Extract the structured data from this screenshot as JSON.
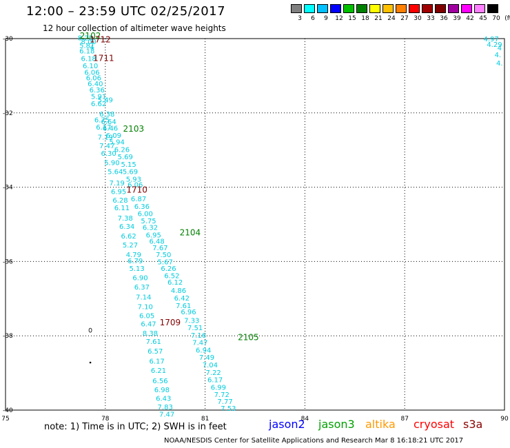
{
  "title": "12:00 – 23:59 UTC 02/25/2017",
  "subtitle": "12 hour collection of altimeter wave heights",
  "legend": {
    "unit": "(ft)",
    "colors": [
      "#808080",
      "#00ffff",
      "#00c0ff",
      "#0000ff",
      "#00c000",
      "#008000",
      "#ffff00",
      "#ffc000",
      "#ff8000",
      "#ff0000",
      "#a00000",
      "#800000",
      "#a000a0",
      "#ff00ff",
      "#ff80ff",
      "#000000"
    ],
    "ticks": [
      "3",
      "6",
      "9",
      "12",
      "15",
      "18",
      "21",
      "24",
      "27",
      "30",
      "33",
      "36",
      "39",
      "42",
      "45",
      "70"
    ]
  },
  "map": {
    "lon_labels": [
      "75",
      "78",
      "81",
      "84",
      "87",
      "90"
    ],
    "lat_labels": [
      "-30",
      "-32",
      "-34",
      "-36",
      "-38",
      "-40"
    ]
  },
  "chart_data": {
    "type": "scatter",
    "x_range": [
      75,
      90
    ],
    "y_range": [
      -40,
      -30
    ],
    "x_ticks": [
      75,
      78,
      81,
      84,
      87,
      90
    ],
    "y_ticks": [
      -30,
      -32,
      -34,
      -36,
      -38,
      -40
    ],
    "grid": true,
    "series": [
      {
        "name": "jason3",
        "color": "#00ccdd",
        "points": [
          {
            "lon": 77.4,
            "lat": -30.05,
            "v": "8.25"
          },
          {
            "lon": 77.5,
            "lat": -30.15,
            "v": "8.00"
          },
          {
            "lon": 77.45,
            "lat": -30.25,
            "v": "5.81"
          },
          {
            "lon": 77.6,
            "lat": -30.3,
            "v": "4"
          },
          {
            "lon": 77.45,
            "lat": -30.4,
            "v": "6.18"
          },
          {
            "lon": 77.5,
            "lat": -30.6,
            "v": "6.18"
          },
          {
            "lon": 77.55,
            "lat": -30.8,
            "v": "6.10"
          },
          {
            "lon": 77.6,
            "lat": -30.97,
            "v": "6.06"
          },
          {
            "lon": 77.65,
            "lat": -31.12,
            "v": "6.06"
          },
          {
            "lon": 77.7,
            "lat": -31.28,
            "v": "6.40"
          },
          {
            "lon": 77.75,
            "lat": -31.45,
            "v": "6.36"
          },
          {
            "lon": 77.8,
            "lat": -31.62,
            "v": "5.91"
          },
          {
            "lon": 78.0,
            "lat": -31.72,
            "v": "5.49"
          },
          {
            "lon": 77.8,
            "lat": -31.82,
            "v": "6.62"
          },
          {
            "lon": 78.05,
            "lat": -32.1,
            "v": "6.38"
          },
          {
            "lon": 77.9,
            "lat": -32.25,
            "v": "6.75"
          },
          {
            "lon": 78.1,
            "lat": -32.3,
            "v": "6.64"
          },
          {
            "lon": 77.95,
            "lat": -32.45,
            "v": "6.17"
          },
          {
            "lon": 78.15,
            "lat": -32.48,
            "v": "6.46"
          },
          {
            "lon": 78.25,
            "lat": -32.67,
            "v": "6.09"
          },
          {
            "lon": 78.0,
            "lat": -32.72,
            "v": "7.19"
          },
          {
            "lon": 78.35,
            "lat": -32.85,
            "v": "5.94"
          },
          {
            "lon": 78.05,
            "lat": -32.95,
            "v": "7.47"
          },
          {
            "lon": 78.5,
            "lat": -33.05,
            "v": "6.26"
          },
          {
            "lon": 78.1,
            "lat": -33.15,
            "v": "6.30"
          },
          {
            "lon": 78.6,
            "lat": -33.25,
            "v": "5.69"
          },
          {
            "lon": 78.2,
            "lat": -33.4,
            "v": "5.90"
          },
          {
            "lon": 78.7,
            "lat": -33.45,
            "v": "5.15"
          },
          {
            "lon": 78.3,
            "lat": -33.65,
            "v": "5.64"
          },
          {
            "lon": 78.75,
            "lat": -33.65,
            "v": "5.69"
          },
          {
            "lon": 78.85,
            "lat": -33.85,
            "v": "5.93"
          },
          {
            "lon": 78.35,
            "lat": -33.95,
            "v": "7.19"
          },
          {
            "lon": 78.9,
            "lat": -34.0,
            "v": "6.06"
          },
          {
            "lon": 78.4,
            "lat": -34.18,
            "v": "6.95"
          },
          {
            "lon": 79.0,
            "lat": -34.38,
            "v": "6.87"
          },
          {
            "lon": 78.45,
            "lat": -34.42,
            "v": "6.28"
          },
          {
            "lon": 79.1,
            "lat": -34.58,
            "v": "6.36"
          },
          {
            "lon": 78.5,
            "lat": -34.62,
            "v": "6.11"
          },
          {
            "lon": 79.2,
            "lat": -34.78,
            "v": "6.00"
          },
          {
            "lon": 78.6,
            "lat": -34.9,
            "v": "7.38"
          },
          {
            "lon": 79.3,
            "lat": -34.97,
            "v": "5.75"
          },
          {
            "lon": 78.65,
            "lat": -35.12,
            "v": "6.34"
          },
          {
            "lon": 79.35,
            "lat": -35.15,
            "v": "6.32"
          },
          {
            "lon": 79.45,
            "lat": -35.35,
            "v": "6.95"
          },
          {
            "lon": 78.7,
            "lat": -35.38,
            "v": "6.62"
          },
          {
            "lon": 79.55,
            "lat": -35.52,
            "v": "6.48"
          },
          {
            "lon": 78.75,
            "lat": -35.62,
            "v": "5.27"
          },
          {
            "lon": 79.65,
            "lat": -35.7,
            "v": "7.67"
          },
          {
            "lon": 79.75,
            "lat": -35.88,
            "v": "7.50"
          },
          {
            "lon": 78.85,
            "lat": -35.88,
            "v": "4.79"
          },
          {
            "lon": 78.9,
            "lat": -36.05,
            "v": "6.79"
          },
          {
            "lon": 79.8,
            "lat": -36.08,
            "v": "5.67"
          },
          {
            "lon": 79.9,
            "lat": -36.25,
            "v": "6.26"
          },
          {
            "lon": 78.95,
            "lat": -36.25,
            "v": "5.13"
          },
          {
            "lon": 80.0,
            "lat": -36.45,
            "v": "6.52"
          },
          {
            "lon": 79.05,
            "lat": -36.5,
            "v": "6.90"
          },
          {
            "lon": 80.1,
            "lat": -36.62,
            "v": "6.12"
          },
          {
            "lon": 79.1,
            "lat": -36.75,
            "v": "6.37"
          },
          {
            "lon": 80.2,
            "lat": -36.85,
            "v": "4.86"
          },
          {
            "lon": 79.15,
            "lat": -37.02,
            "v": "7.14"
          },
          {
            "lon": 80.3,
            "lat": -37.05,
            "v": "6.42"
          },
          {
            "lon": 80.35,
            "lat": -37.25,
            "v": "7.61"
          },
          {
            "lon": 79.2,
            "lat": -37.28,
            "v": "7.10"
          },
          {
            "lon": 80.5,
            "lat": -37.42,
            "v": "6.96"
          },
          {
            "lon": 79.25,
            "lat": -37.52,
            "v": "6.05"
          },
          {
            "lon": 80.6,
            "lat": -37.65,
            "v": "7.33"
          },
          {
            "lon": 79.3,
            "lat": -37.75,
            "v": "6.47"
          },
          {
            "lon": 80.7,
            "lat": -37.85,
            "v": "7.51"
          },
          {
            "lon": 79.35,
            "lat": -38.0,
            "v": "8.38"
          },
          {
            "lon": 80.8,
            "lat": -38.05,
            "v": "7.16"
          },
          {
            "lon": 79.45,
            "lat": -38.22,
            "v": "7.61"
          },
          {
            "lon": 80.85,
            "lat": -38.25,
            "v": "7.47"
          },
          {
            "lon": 80.95,
            "lat": -38.45,
            "v": "6.94"
          },
          {
            "lon": 79.5,
            "lat": -38.48,
            "v": "6.57"
          },
          {
            "lon": 81.05,
            "lat": -38.65,
            "v": "7.49"
          },
          {
            "lon": 79.55,
            "lat": -38.75,
            "v": "6.17"
          },
          {
            "lon": 81.15,
            "lat": -38.85,
            "v": "7.04"
          },
          {
            "lon": 79.6,
            "lat": -39.0,
            "v": "6.21"
          },
          {
            "lon": 81.25,
            "lat": -39.05,
            "v": "7.22"
          },
          {
            "lon": 81.3,
            "lat": -39.25,
            "v": "6.17"
          },
          {
            "lon": 79.65,
            "lat": -39.28,
            "v": "6.56"
          },
          {
            "lon": 81.4,
            "lat": -39.45,
            "v": "6.99"
          },
          {
            "lon": 79.7,
            "lat": -39.52,
            "v": "6.98"
          },
          {
            "lon": 81.5,
            "lat": -39.65,
            "v": "7.72"
          },
          {
            "lon": 79.75,
            "lat": -39.75,
            "v": "6.43"
          },
          {
            "lon": 81.6,
            "lat": -39.83,
            "v": "7.77"
          },
          {
            "lon": 79.8,
            "lat": -39.98,
            "v": "7.83"
          },
          {
            "lon": 81.7,
            "lat": -40.02,
            "v": "7.53"
          },
          {
            "lon": 79.85,
            "lat": -40.18,
            "v": "7.47"
          },
          {
            "lon": 89.6,
            "lat": -30.07,
            "v": "4.97"
          },
          {
            "lon": 89.7,
            "lat": -30.22,
            "v": "4.29"
          },
          {
            "lon": 89.85,
            "lat": -30.32,
            "v": "4"
          },
          {
            "lon": 89.8,
            "lat": -30.5,
            "v": "4."
          },
          {
            "lon": 89.85,
            "lat": -30.72,
            "v": "4."
          }
        ]
      }
    ],
    "pass_labels": [
      {
        "text": "2102",
        "lon": 77.55,
        "lat": -30.0,
        "color": "#008000"
      },
      {
        "text": "1712",
        "lon": 77.85,
        "lat": -30.1,
        "color": "#800000"
      },
      {
        "text": "1711",
        "lon": 77.95,
        "lat": -30.6,
        "color": "#800000"
      },
      {
        "text": "2103",
        "lon": 78.85,
        "lat": -32.5,
        "color": "#008000"
      },
      {
        "text": "1710",
        "lon": 78.95,
        "lat": -34.15,
        "color": "#800000"
      },
      {
        "text": "2104",
        "lon": 80.55,
        "lat": -35.3,
        "color": "#008000"
      },
      {
        "text": "1709",
        "lon": 79.95,
        "lat": -37.72,
        "color": "#800000"
      },
      {
        "text": "2105",
        "lon": 82.3,
        "lat": -38.12,
        "color": "#008000"
      }
    ]
  },
  "note": "note:  1) Time is in UTC;  2) SWH is in feet",
  "satellites": [
    {
      "name": "jason2",
      "color": "#0000ff"
    },
    {
      "name": "jason3",
      "color": "#00a000"
    },
    {
      "name": "altika",
      "color": "#ff9900"
    },
    {
      "name": "cryosat",
      "color": "#ff0000"
    },
    {
      "name": "s3a",
      "color": "#8b0000"
    }
  ],
  "footer": "NOAA/NESDIS Center for Satellite Applications and Research    Mar  8 16:18:21 UTC 2017"
}
